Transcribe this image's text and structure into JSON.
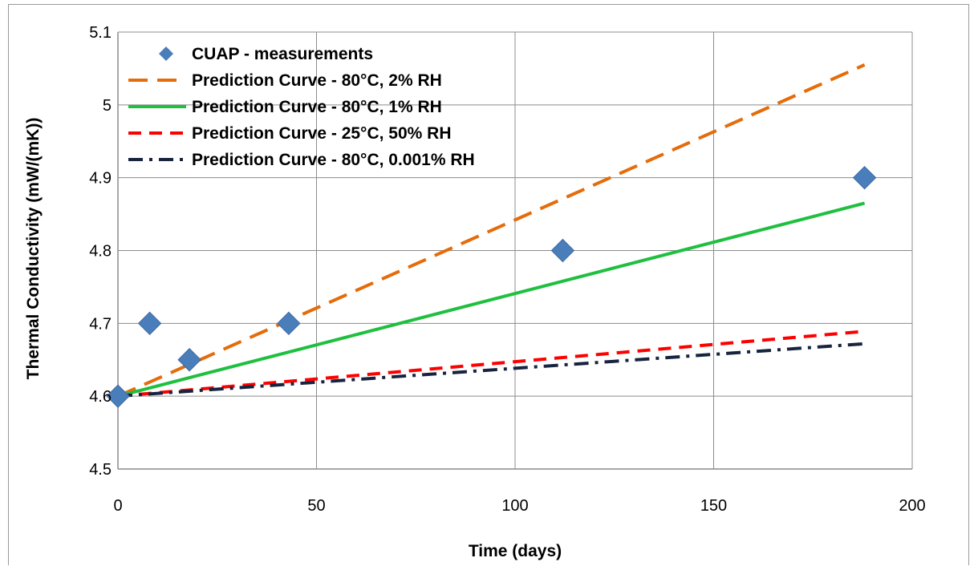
{
  "chart_data": {
    "type": "line",
    "title": "",
    "xlabel": "Time (days)",
    "ylabel": "Thermal Conductivity (mW/(mK))",
    "xlim": [
      0,
      200
    ],
    "ylim": [
      4.5,
      5.1
    ],
    "xticks": [
      0,
      50,
      100,
      150,
      200
    ],
    "yticks": [
      4.5,
      4.6,
      4.7,
      4.8,
      4.9,
      5,
      5.1
    ],
    "xtick_labels": [
      "0",
      "50",
      "100",
      "150",
      "200"
    ],
    "ytick_labels": [
      "4.5",
      "4.6",
      "4.7",
      "4.8",
      "4.9",
      "5",
      "5.1"
    ],
    "grid": true,
    "legend_position": "top-left",
    "series": [
      {
        "name": "CUAP - measurements",
        "kind": "scatter",
        "marker": "diamond",
        "color": "#4a7ebb",
        "x": [
          0,
          8,
          18,
          43,
          112,
          188
        ],
        "y": [
          4.6,
          4.7,
          4.65,
          4.7,
          4.8,
          4.9
        ]
      },
      {
        "name": "Prediction Curve - 80°C, 2% RH",
        "kind": "line",
        "dash": "long-dash",
        "color": "#e46c0a",
        "x": [
          0,
          188
        ],
        "y": [
          4.6,
          5.055
        ]
      },
      {
        "name": "Prediction Curve - 80°C, 1% RH",
        "kind": "line",
        "dash": "solid",
        "color": "#1fbf3f",
        "x": [
          0,
          188
        ],
        "y": [
          4.6,
          4.865
        ]
      },
      {
        "name": "Prediction Curve - 25°C, 50% RH",
        "kind": "line",
        "dash": "dash",
        "color": "#ff0000",
        "x": [
          0,
          188
        ],
        "y": [
          4.6,
          4.689
        ]
      },
      {
        "name": "Prediction Curve - 80°C, 0.001% RH",
        "kind": "line",
        "dash": "dash-dot",
        "color": "#17233f",
        "x": [
          0,
          188
        ],
        "y": [
          4.6,
          4.672
        ]
      }
    ]
  }
}
